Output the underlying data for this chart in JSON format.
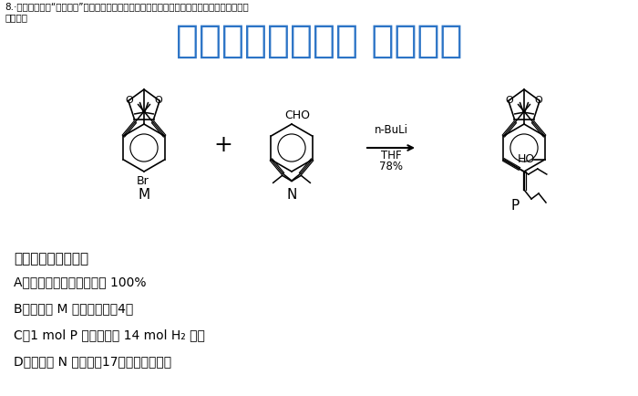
{
  "background_color": "#ffffff",
  "header_line1": "8.·一篇关于合成“纳米小人”的文章成为有机化学史上最受欢迎的文章之一，其中涉及的一个反",
  "header_line2": "应如下：",
  "watermark": "微信公众号关注： 趣找答案",
  "question_text": "下列说法中错误的是",
  "options": [
    "A．该反应的原子利用率为 100%",
    "B．化合物 M 的一氯代物有4种",
    "C．1 mol P 最多可以与 14 mol H₂ 反应",
    "D．化合物 N 中最多有17个碳原子共平面"
  ],
  "reagent_line1": "n-BuLi",
  "reagent_line2": "THF",
  "reagent_line3": "78%",
  "label_M": "M",
  "label_N": "N",
  "label_P": "P",
  "plus_sign": "+",
  "arrow": "→"
}
